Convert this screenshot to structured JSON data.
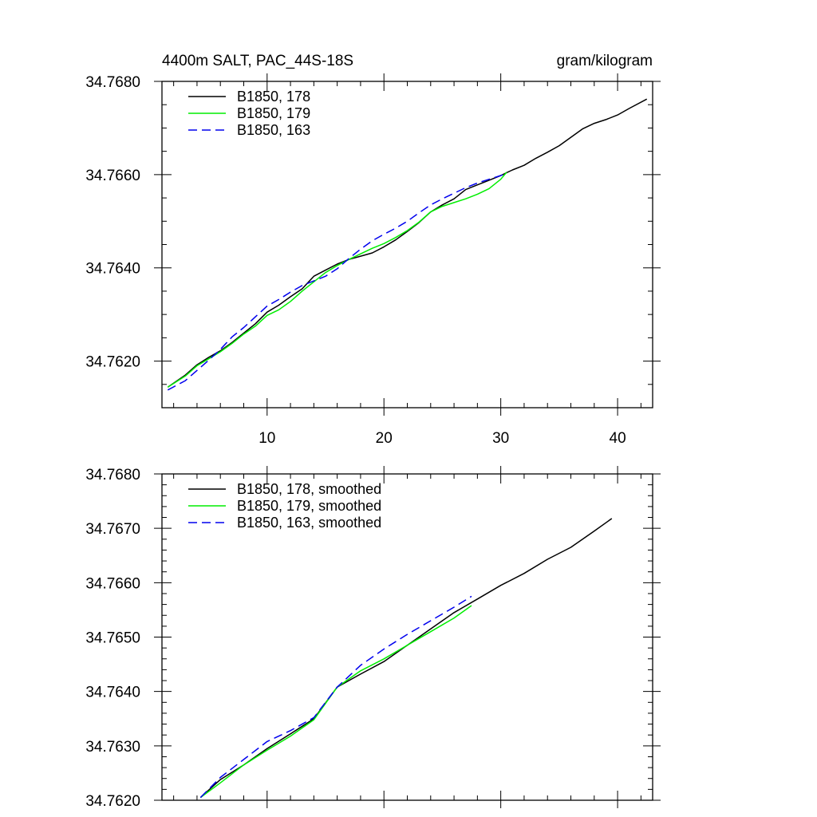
{
  "chart_data": [
    {
      "type": "line",
      "title": "4400m SALT, PAC_44S-18S",
      "units": "gram/kilogram",
      "xlim": [
        1,
        43
      ],
      "ylim": [
        34.761,
        34.768
      ],
      "xticks": [
        10,
        20,
        30,
        40
      ],
      "yticks": [
        34.762,
        34.764,
        34.766,
        34.768
      ],
      "ytick_labels": [
        "34.7620",
        "34.7640",
        "34.7660",
        "34.7680"
      ],
      "xminor_step": 2,
      "yminor_step": 0.0005,
      "legend_position": "top-left",
      "series": [
        {
          "name": "B1850, 178",
          "color": "#000000",
          "dash": "solid",
          "x": [
            1.5,
            3,
            4,
            5,
            6,
            7,
            8,
            9,
            10,
            11,
            12,
            13,
            14,
            15,
            16,
            17,
            18,
            19,
            20,
            21,
            22,
            23,
            24,
            25,
            26,
            27,
            28,
            29,
            30,
            31,
            32,
            33,
            34,
            35,
            36,
            37,
            38,
            39,
            40,
            41,
            42.5
          ],
          "y": [
            34.76144,
            34.7617,
            34.76192,
            34.76208,
            34.76222,
            34.7624,
            34.7626,
            34.7628,
            34.76305,
            34.7632,
            34.76338,
            34.76355,
            34.76382,
            34.76395,
            34.76408,
            34.76418,
            34.76425,
            34.76432,
            34.76445,
            34.7646,
            34.76478,
            34.76497,
            34.7652,
            34.76535,
            34.76548,
            34.76568,
            34.76578,
            34.76588,
            34.76598,
            34.7661,
            34.7662,
            34.76635,
            34.76648,
            34.76662,
            34.7668,
            34.76698,
            34.7671,
            34.76718,
            34.76728,
            34.76742,
            34.76762
          ]
        },
        {
          "name": "B1850, 179",
          "color": "#00ee00",
          "dash": "solid",
          "x": [
            1.5,
            3,
            4,
            5,
            6,
            7,
            8,
            9,
            10,
            11,
            12,
            13,
            14,
            15,
            16,
            17,
            18,
            19,
            20,
            21,
            22,
            23,
            24,
            25,
            26,
            27,
            28,
            29,
            30,
            30.5
          ],
          "y": [
            34.76144,
            34.76168,
            34.7619,
            34.76205,
            34.7622,
            34.76238,
            34.76258,
            34.76275,
            34.76298,
            34.7631,
            34.76328,
            34.7635,
            34.7637,
            34.7639,
            34.76405,
            34.76418,
            34.7643,
            34.76442,
            34.76452,
            34.76465,
            34.7648,
            34.76498,
            34.7652,
            34.76532,
            34.7654,
            34.76548,
            34.76558,
            34.7657,
            34.7659,
            34.76605
          ]
        },
        {
          "name": "B1850, 163",
          "color": "#0000ee",
          "dash": "dashed",
          "x": [
            1.5,
            3,
            4,
            5,
            6,
            7,
            8,
            9,
            10,
            11,
            12,
            13,
            14,
            15,
            16,
            17,
            18,
            19,
            20,
            21,
            22,
            23,
            24,
            25,
            26,
            27,
            28,
            29,
            30,
            30.5
          ],
          "y": [
            34.76138,
            34.76158,
            34.7618,
            34.76202,
            34.76225,
            34.76252,
            34.76272,
            34.76295,
            34.76318,
            34.76332,
            34.76348,
            34.76362,
            34.76372,
            34.76382,
            34.76398,
            34.7642,
            34.7644,
            34.76458,
            34.76472,
            34.76485,
            34.765,
            34.76518,
            34.76535,
            34.76548,
            34.7656,
            34.76572,
            34.76582,
            34.7659,
            34.76598,
            34.76602
          ]
        }
      ]
    },
    {
      "type": "line",
      "title": "",
      "xlim": [
        1,
        43
      ],
      "ylim": [
        34.762,
        34.768
      ],
      "xticks": [
        10,
        20,
        30,
        40
      ],
      "show_xtick_labels": false,
      "yticks": [
        34.762,
        34.763,
        34.764,
        34.765,
        34.766,
        34.767,
        34.768
      ],
      "ytick_labels": [
        "34.7620",
        "34.7630",
        "34.7640",
        "34.7650",
        "34.7660",
        "34.7670",
        "34.7680"
      ],
      "xminor_step": 2,
      "yminor_step": 0.0002,
      "legend_position": "top-left",
      "series": [
        {
          "name": "B1850, 178, smoothed",
          "color": "#000000",
          "dash": "solid",
          "x": [
            4.3,
            6,
            8,
            10,
            12,
            14,
            16,
            18,
            20,
            22,
            24,
            26,
            28,
            30,
            32,
            34,
            36,
            38,
            39.5
          ],
          "y": [
            34.76205,
            34.76238,
            34.76265,
            34.76295,
            34.76322,
            34.7635,
            34.76408,
            34.76432,
            34.76455,
            34.76485,
            34.76515,
            34.76545,
            34.7657,
            34.76595,
            34.76617,
            34.76643,
            34.76665,
            34.76695,
            34.76718
          ]
        },
        {
          "name": "B1850, 179, smoothed",
          "color": "#00ee00",
          "dash": "solid",
          "x": [
            4.3,
            6,
            8,
            10,
            12,
            14,
            16,
            18,
            20,
            22,
            24,
            26,
            27.5
          ],
          "y": [
            34.76205,
            34.76232,
            34.76265,
            34.76292,
            34.76318,
            34.76348,
            34.76408,
            34.76438,
            34.7646,
            34.76485,
            34.7651,
            34.76535,
            34.76558
          ]
        },
        {
          "name": "B1850, 163, smoothed",
          "color": "#0000ee",
          "dash": "dashed",
          "x": [
            4.3,
            6,
            8,
            10,
            12,
            14,
            16,
            18,
            20,
            22,
            24,
            26,
            27.5
          ],
          "y": [
            34.76205,
            34.76242,
            34.76275,
            34.76308,
            34.76328,
            34.76352,
            34.76408,
            34.76448,
            34.76478,
            34.76505,
            34.7653,
            34.76555,
            34.76575
          ]
        }
      ]
    }
  ]
}
